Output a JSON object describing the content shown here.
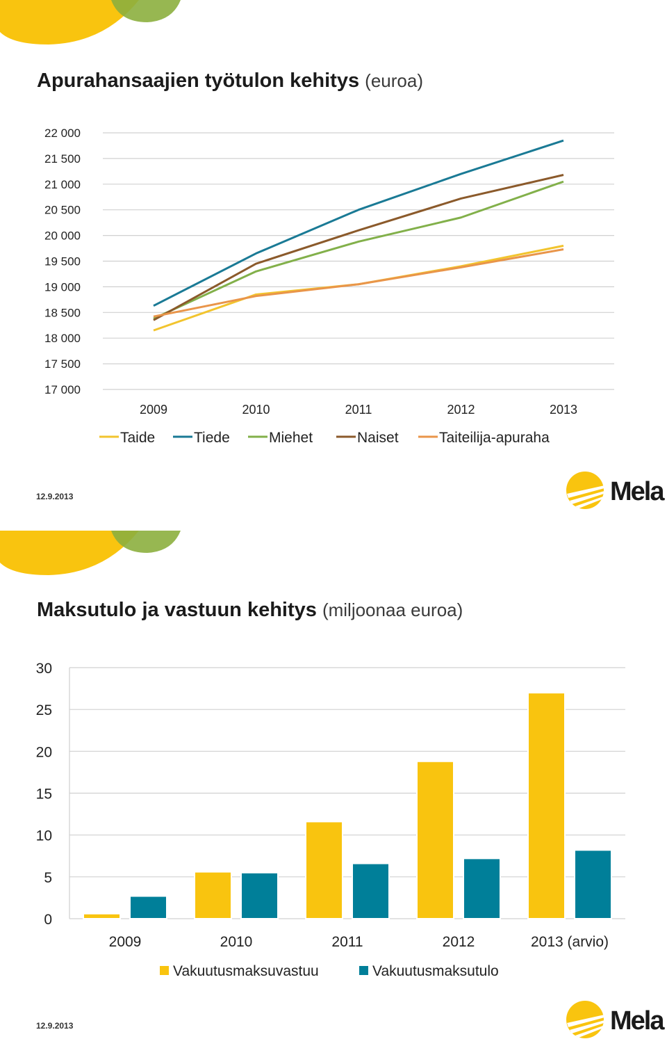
{
  "slides": [
    {
      "title": "Apurahansaajien työtulon kehitys",
      "subtitle": "(euroa)",
      "date": "12.9.2013",
      "logo_text": "Mela"
    },
    {
      "title": "Maksutulo ja vastuun kehitys",
      "subtitle": "(miljoonaa euroa)",
      "date": "12.9.2013",
      "logo_text": "Mela"
    }
  ],
  "colors": {
    "yellow": "#f9c40f",
    "green": "#8caf3e",
    "teal": "#007f99",
    "gold": "#f9c40f"
  },
  "chart_data": [
    {
      "type": "line",
      "title": "Apurahansaajien työtulon kehitys (euroa)",
      "x": [
        "2009",
        "2010",
        "2011",
        "2012",
        "2013"
      ],
      "ylim": [
        17000,
        22000
      ],
      "yticks": [
        17000,
        17500,
        18000,
        18500,
        19000,
        19500,
        20000,
        20500,
        21000,
        21500,
        22000
      ],
      "ytick_labels": [
        "17 000",
        "17 500",
        "18 000",
        "18 500",
        "19 000",
        "19 500",
        "20 000",
        "20 500",
        "21 000",
        "21 500",
        "22 000"
      ],
      "grid": true,
      "legend": "bottom",
      "series": [
        {
          "name": "Taide",
          "color": "#f2c42e",
          "values": [
            18150,
            18850,
            19050,
            19400,
            19800
          ]
        },
        {
          "name": "Tiede",
          "color": "#1a7a95",
          "values": [
            18630,
            19650,
            20500,
            21200,
            21850
          ]
        },
        {
          "name": "Miehet",
          "color": "#82b04a",
          "values": [
            18380,
            19300,
            19880,
            20350,
            21050
          ]
        },
        {
          "name": "Naiset",
          "color": "#8b5a2b",
          "values": [
            18350,
            19450,
            20100,
            20720,
            21180
          ]
        },
        {
          "name": "Taiteilija-apuraha",
          "color": "#e9954a",
          "values": [
            18420,
            18820,
            19050,
            19380,
            19730
          ]
        }
      ]
    },
    {
      "type": "bar",
      "title": "Maksutulo ja vastuun kehitys (miljoonaa euroa)",
      "categories": [
        "2009",
        "2010",
        "2011",
        "2012",
        "2013 (arvio)"
      ],
      "ylim": [
        0,
        30
      ],
      "yticks": [
        0,
        5,
        10,
        15,
        20,
        25,
        30
      ],
      "grid": true,
      "legend": "bottom",
      "series": [
        {
          "name": "Vakuutusmaksuvastuu",
          "color": "#f9c40f",
          "values": [
            0.6,
            5.6,
            11.6,
            18.8,
            27.0
          ]
        },
        {
          "name": "Vakuutusmaksutulo",
          "color": "#007f99",
          "values": [
            2.7,
            5.5,
            6.6,
            7.2,
            8.2
          ]
        }
      ]
    }
  ]
}
